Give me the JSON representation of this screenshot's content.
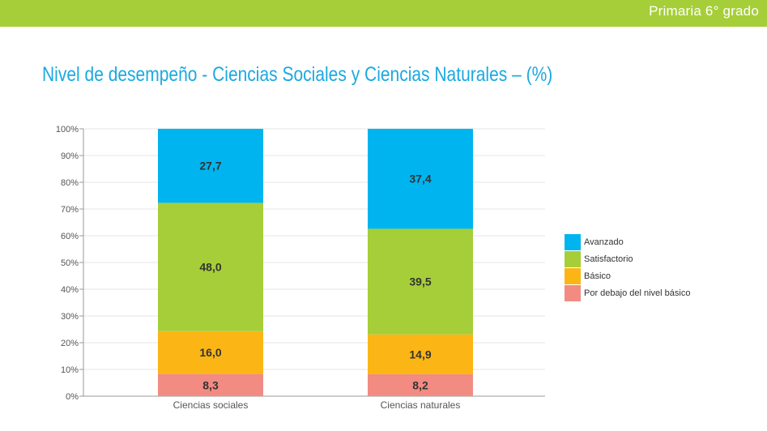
{
  "header": {
    "grade": "Primaria 6° grado",
    "color": "#a6ce39"
  },
  "page": {
    "title": "Nivel de desempeño - Ciencias Sociales y Ciencias Naturales – (%)"
  },
  "chart_data": {
    "type": "bar",
    "stacked": true,
    "title": "Nivel de desempeño - Ciencias Sociales y Ciencias Naturales – (%)",
    "categories": [
      "Ciencias sociales",
      "Ciencias naturales"
    ],
    "series": [
      {
        "name": "Por debajo del nivel básico",
        "color": "#f28b82",
        "values": [
          8.3,
          8.2
        ],
        "labels": [
          "8,3",
          "8,2"
        ]
      },
      {
        "name": "Básico",
        "color": "#fbb616",
        "values": [
          16.0,
          14.9
        ],
        "labels": [
          "16,0",
          "14,9"
        ]
      },
      {
        "name": "Satisfactorio",
        "color": "#a6ce39",
        "values": [
          48.0,
          39.5
        ],
        "labels": [
          "48,0",
          "39,5"
        ]
      },
      {
        "name": "Avanzado",
        "color": "#00b5ef",
        "values": [
          27.7,
          37.4
        ],
        "labels": [
          "27,7",
          "37,4"
        ]
      }
    ],
    "legend_order": [
      "Avanzado",
      "Satisfactorio",
      "Básico",
      "Por debajo del nivel básico"
    ],
    "yticks": [
      "0%",
      "10%",
      "20%",
      "30%",
      "40%",
      "50%",
      "60%",
      "70%",
      "80%",
      "90%",
      "100%"
    ],
    "ylim": [
      0,
      100
    ],
    "grid": true,
    "legend_position": "right"
  }
}
